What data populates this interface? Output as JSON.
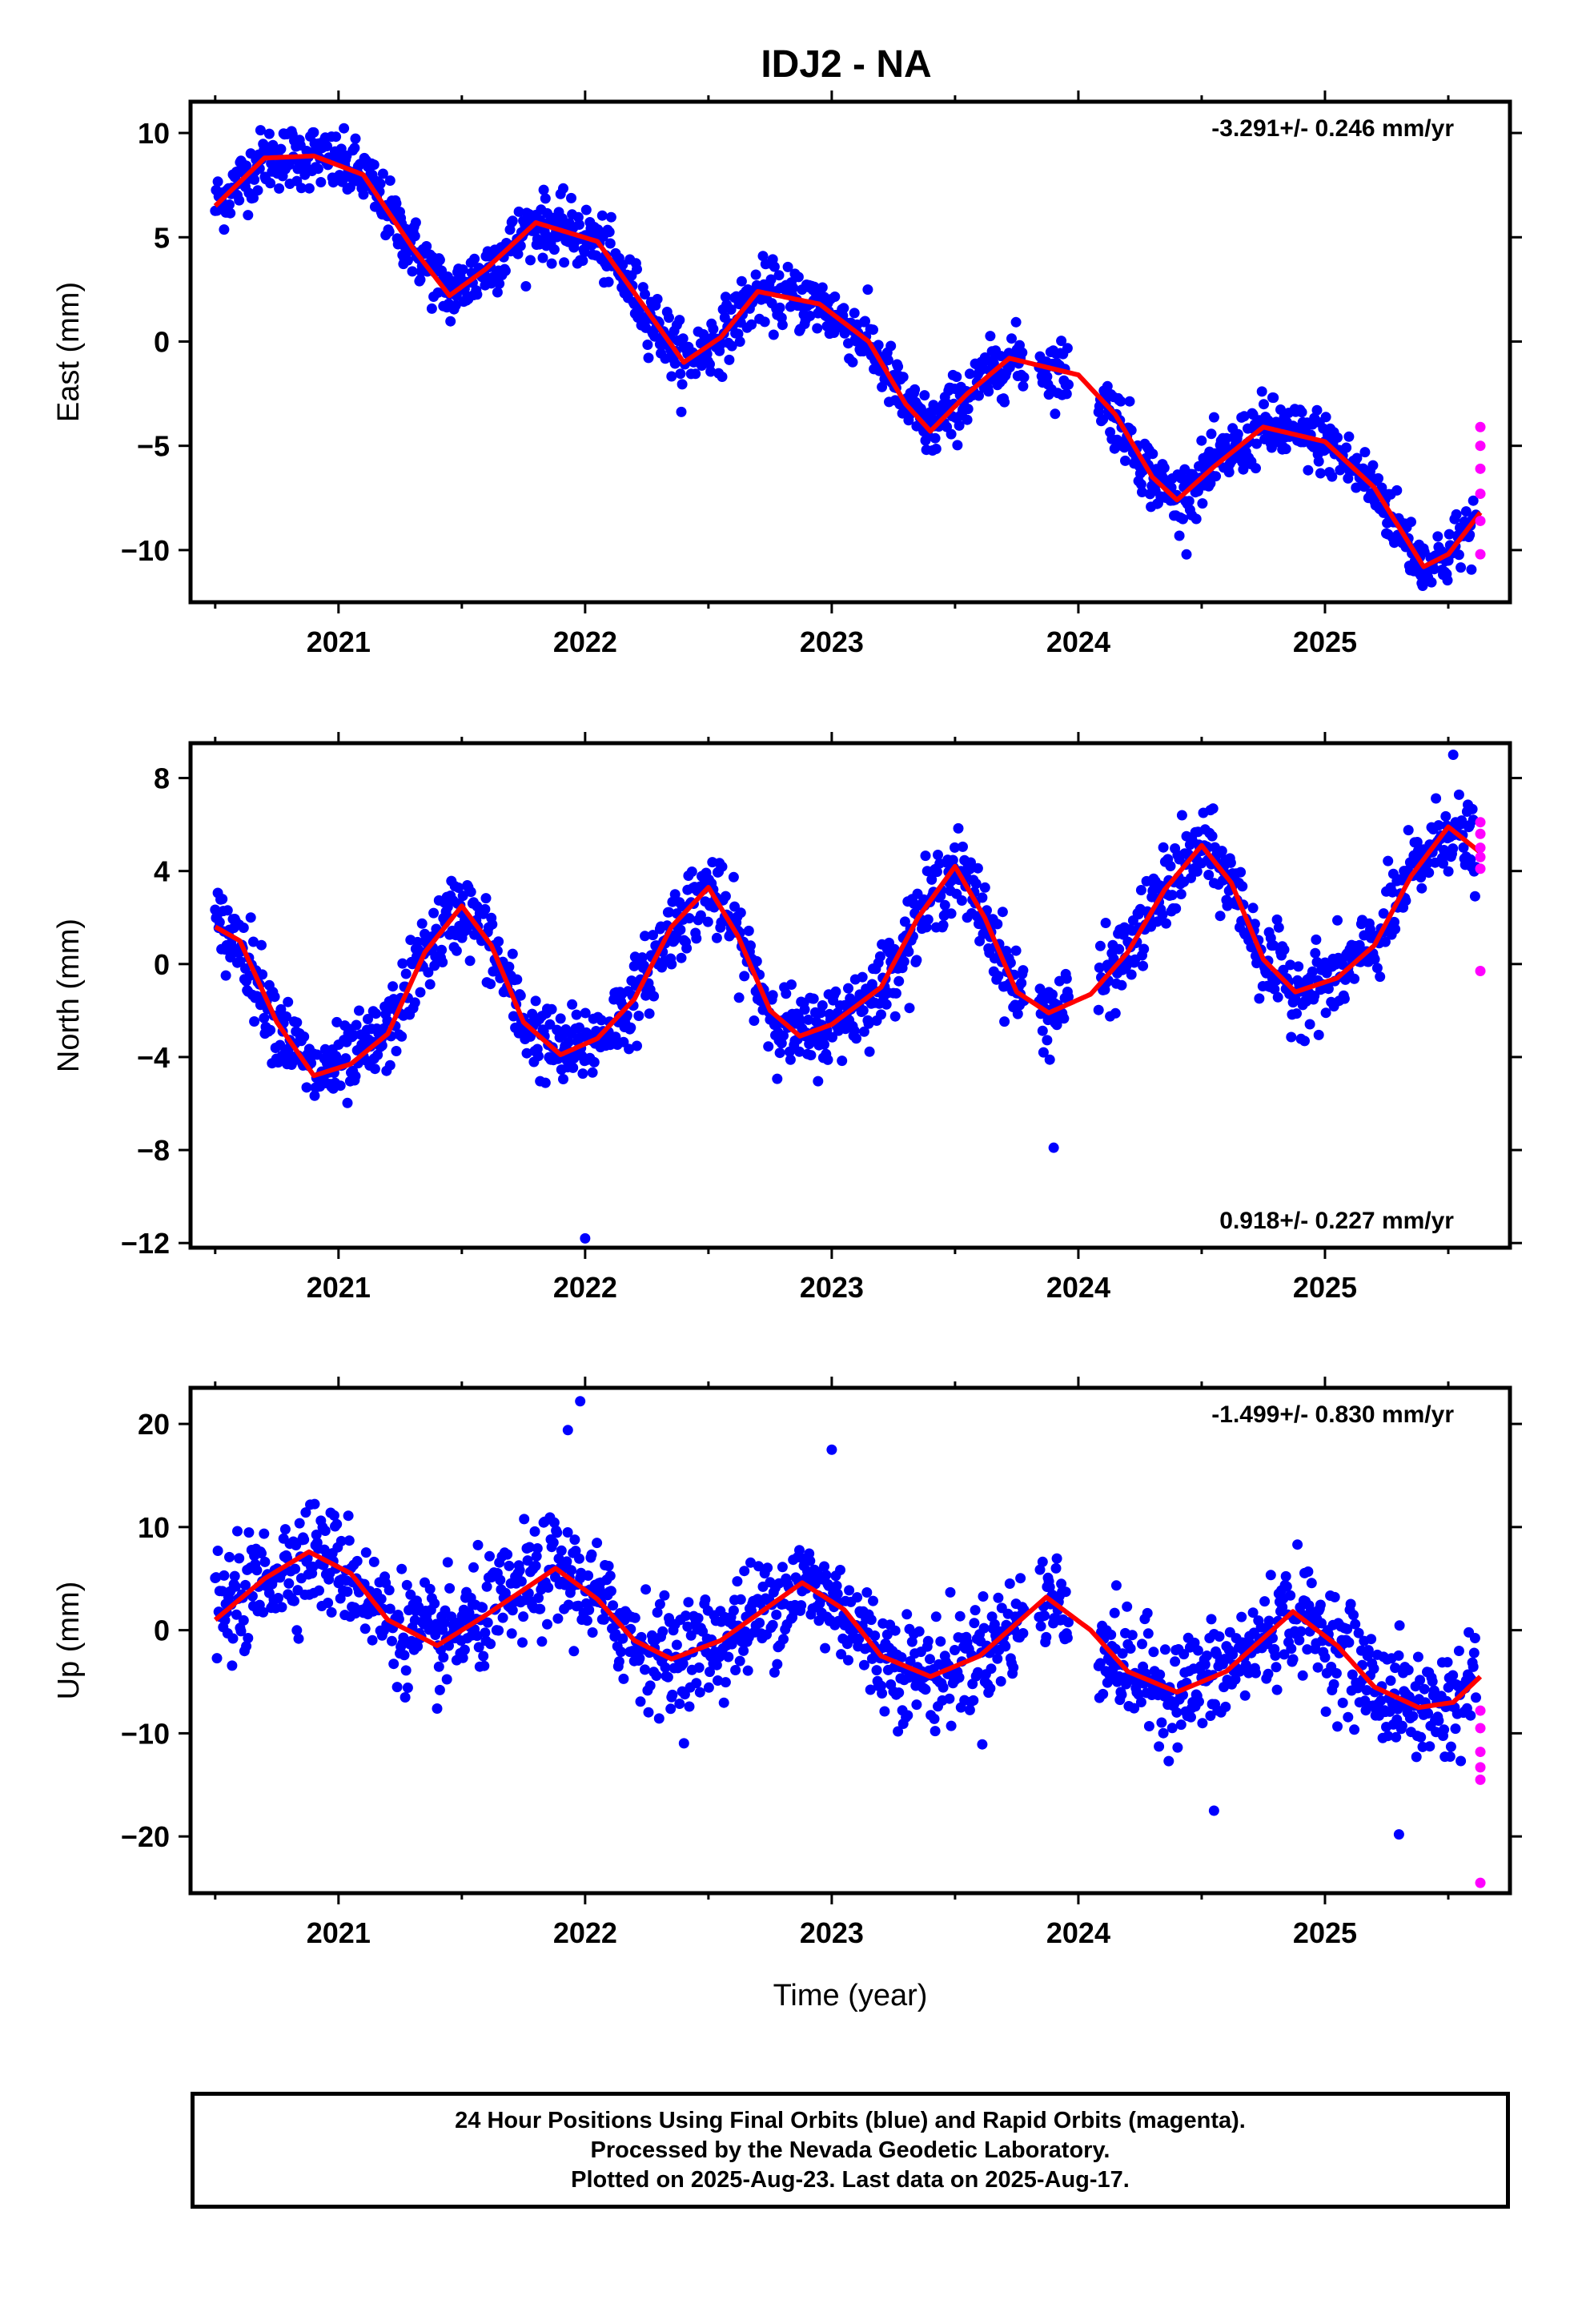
{
  "title": "IDJ2 - NA",
  "colors": {
    "final_orbits": "#0000ff",
    "rapid_orbits": "#ff00ff",
    "model_fit": "#ff0000",
    "axes": "#000000"
  },
  "chart_data": [
    {
      "type": "scatter",
      "component": "East",
      "ylabel": "East (mm)",
      "xlabel": "",
      "xlim": [
        2020.4,
        2025.75
      ],
      "ylim": [
        -12.5,
        11.5
      ],
      "yticks": [
        10,
        5,
        0,
        -5,
        -10
      ],
      "xticks": [
        2021,
        2022,
        2023,
        2024,
        2025
      ],
      "rate_label": "-3.291+/- 0.246 mm/yr",
      "rate_position": "top-right",
      "trend": {
        "t0": 2020.5,
        "y0": 6.8,
        "rate_mm_per_yr": -3.291
      },
      "seasonal_amplitude_mm": 3.2,
      "seasonal_peak_year_fraction": 0.78,
      "fit": [
        {
          "x": 2020.5,
          "y": 6.5
        },
        {
          "x": 2020.7,
          "y": 8.8
        },
        {
          "x": 2020.9,
          "y": 8.9
        },
        {
          "x": 2021.1,
          "y": 8.0
        },
        {
          "x": 2021.3,
          "y": 4.5
        },
        {
          "x": 2021.45,
          "y": 2.2
        },
        {
          "x": 2021.6,
          "y": 3.5
        },
        {
          "x": 2021.8,
          "y": 5.7
        },
        {
          "x": 2022.05,
          "y": 4.8
        },
        {
          "x": 2022.25,
          "y": 1.5
        },
        {
          "x": 2022.4,
          "y": -1.0
        },
        {
          "x": 2022.55,
          "y": 0.2
        },
        {
          "x": 2022.7,
          "y": 2.4
        },
        {
          "x": 2022.95,
          "y": 1.8
        },
        {
          "x": 2023.15,
          "y": 0.0
        },
        {
          "x": 2023.3,
          "y": -3.0
        },
        {
          "x": 2023.4,
          "y": -4.3
        },
        {
          "x": 2023.55,
          "y": -2.5
        },
        {
          "x": 2023.72,
          "y": -0.8
        },
        {
          "x": 2024.0,
          "y": -1.6
        },
        {
          "x": 2024.15,
          "y": -3.5
        },
        {
          "x": 2024.3,
          "y": -6.5
        },
        {
          "x": 2024.4,
          "y": -7.6
        },
        {
          "x": 2024.55,
          "y": -6.0
        },
        {
          "x": 2024.75,
          "y": -4.1
        },
        {
          "x": 2025.0,
          "y": -4.8
        },
        {
          "x": 2025.2,
          "y": -7.0
        },
        {
          "x": 2025.4,
          "y": -10.8
        },
        {
          "x": 2025.5,
          "y": -10.2
        },
        {
          "x": 2025.63,
          "y": -8.2
        }
      ],
      "rapid_points": [
        {
          "x": 2025.63,
          "y": -4.1
        },
        {
          "x": 2025.63,
          "y": -5.0
        },
        {
          "x": 2025.63,
          "y": -6.1
        },
        {
          "x": 2025.63,
          "y": -7.3
        },
        {
          "x": 2025.63,
          "y": -8.6
        },
        {
          "x": 2025.63,
          "y": -10.2
        }
      ]
    },
    {
      "type": "scatter",
      "component": "North",
      "ylabel": "North (mm)",
      "xlabel": "",
      "xlim": [
        2020.4,
        2025.75
      ],
      "ylim": [
        -12.2,
        9.5
      ],
      "yticks": [
        8,
        4,
        0,
        -4,
        -8,
        -12
      ],
      "xticks": [
        2021,
        2022,
        2023,
        2024,
        2025
      ],
      "rate_label": "0.918+/- 0.227 mm/yr",
      "rate_position": "bottom-right",
      "trend": {
        "t0": 2020.5,
        "y0": -2.0,
        "rate_mm_per_yr": 0.918
      },
      "seasonal_amplitude_mm": 3.9,
      "seasonal_peak_year_fraction": 0.45,
      "fit": [
        {
          "x": 2020.5,
          "y": 1.6
        },
        {
          "x": 2020.6,
          "y": 1.0
        },
        {
          "x": 2020.75,
          "y": -2.5
        },
        {
          "x": 2020.9,
          "y": -4.8
        },
        {
          "x": 2021.05,
          "y": -4.3
        },
        {
          "x": 2021.2,
          "y": -3.0
        },
        {
          "x": 2021.35,
          "y": 0.5
        },
        {
          "x": 2021.5,
          "y": 2.5
        },
        {
          "x": 2021.62,
          "y": 0.8
        },
        {
          "x": 2021.75,
          "y": -2.5
        },
        {
          "x": 2021.9,
          "y": -3.9
        },
        {
          "x": 2022.05,
          "y": -3.2
        },
        {
          "x": 2022.2,
          "y": -1.5
        },
        {
          "x": 2022.35,
          "y": 1.6
        },
        {
          "x": 2022.5,
          "y": 3.3
        },
        {
          "x": 2022.62,
          "y": 1.2
        },
        {
          "x": 2022.75,
          "y": -2.0
        },
        {
          "x": 2022.87,
          "y": -3.1
        },
        {
          "x": 2023.0,
          "y": -2.6
        },
        {
          "x": 2023.2,
          "y": -1.0
        },
        {
          "x": 2023.35,
          "y": 2.0
        },
        {
          "x": 2023.5,
          "y": 4.2
        },
        {
          "x": 2023.62,
          "y": 2.0
        },
        {
          "x": 2023.75,
          "y": -1.2
        },
        {
          "x": 2023.88,
          "y": -2.1
        },
        {
          "x": 2024.05,
          "y": -1.3
        },
        {
          "x": 2024.2,
          "y": 0.5
        },
        {
          "x": 2024.35,
          "y": 3.2
        },
        {
          "x": 2024.5,
          "y": 5.1
        },
        {
          "x": 2024.62,
          "y": 3.5
        },
        {
          "x": 2024.75,
          "y": 0.2
        },
        {
          "x": 2024.88,
          "y": -1.2
        },
        {
          "x": 2025.05,
          "y": -0.6
        },
        {
          "x": 2025.2,
          "y": 0.8
        },
        {
          "x": 2025.35,
          "y": 3.8
        },
        {
          "x": 2025.5,
          "y": 5.9
        },
        {
          "x": 2025.63,
          "y": 4.8
        }
      ],
      "rapid_points": [
        {
          "x": 2025.63,
          "y": 6.1
        },
        {
          "x": 2025.63,
          "y": 5.6
        },
        {
          "x": 2025.63,
          "y": 5.0
        },
        {
          "x": 2025.63,
          "y": 4.6
        },
        {
          "x": 2025.63,
          "y": 4.1
        },
        {
          "x": 2025.63,
          "y": -0.3
        }
      ],
      "outliers": [
        {
          "x": 2022.0,
          "y": -11.8
        },
        {
          "x": 2023.9,
          "y": -7.9
        },
        {
          "x": 2025.52,
          "y": 9.0
        }
      ]
    },
    {
      "type": "scatter",
      "component": "Up",
      "ylabel": "Up (mm)",
      "xlabel": "Time (year)",
      "xlim": [
        2020.4,
        2025.75
      ],
      "ylim": [
        -25.5,
        23.5
      ],
      "yticks": [
        20,
        10,
        0,
        -10,
        -20
      ],
      "xticks": [
        2021,
        2022,
        2023,
        2024,
        2025
      ],
      "rate_label": "-1.499+/- 0.830 mm/yr",
      "rate_position": "top-right",
      "trend": {
        "t0": 2020.5,
        "y0": 3.0,
        "rate_mm_per_yr": -1.499
      },
      "seasonal_amplitude_mm": 5.2,
      "seasonal_peak_year_fraction": 0.9,
      "fit": [
        {
          "x": 2020.5,
          "y": 1.0
        },
        {
          "x": 2020.7,
          "y": 5.0
        },
        {
          "x": 2020.88,
          "y": 7.6
        },
        {
          "x": 2021.05,
          "y": 5.5
        },
        {
          "x": 2021.2,
          "y": 1.0
        },
        {
          "x": 2021.4,
          "y": -1.5
        },
        {
          "x": 2021.6,
          "y": 1.5
        },
        {
          "x": 2021.88,
          "y": 6.0
        },
        {
          "x": 2022.05,
          "y": 3.0
        },
        {
          "x": 2022.2,
          "y": -1.0
        },
        {
          "x": 2022.35,
          "y": -2.8
        },
        {
          "x": 2022.55,
          "y": -1.0
        },
        {
          "x": 2022.88,
          "y": 4.6
        },
        {
          "x": 2023.05,
          "y": 2.0
        },
        {
          "x": 2023.2,
          "y": -2.5
        },
        {
          "x": 2023.4,
          "y": -4.5
        },
        {
          "x": 2023.6,
          "y": -2.5
        },
        {
          "x": 2023.87,
          "y": 3.2
        },
        {
          "x": 2024.05,
          "y": 0.0
        },
        {
          "x": 2024.2,
          "y": -4.0
        },
        {
          "x": 2024.4,
          "y": -6.0
        },
        {
          "x": 2024.6,
          "y": -4.0
        },
        {
          "x": 2024.87,
          "y": 1.8
        },
        {
          "x": 2025.05,
          "y": -1.5
        },
        {
          "x": 2025.2,
          "y": -5.5
        },
        {
          "x": 2025.38,
          "y": -7.5
        },
        {
          "x": 2025.52,
          "y": -7.0
        },
        {
          "x": 2025.63,
          "y": -4.5
        }
      ],
      "rapid_points": [
        {
          "x": 2025.63,
          "y": -7.8
        },
        {
          "x": 2025.63,
          "y": -9.5
        },
        {
          "x": 2025.63,
          "y": -11.8
        },
        {
          "x": 2025.63,
          "y": -13.3
        },
        {
          "x": 2025.63,
          "y": -14.5
        },
        {
          "x": 2025.63,
          "y": -24.5
        }
      ],
      "outliers": [
        {
          "x": 2021.98,
          "y": 22.2
        },
        {
          "x": 2021.93,
          "y": 19.4
        },
        {
          "x": 2023.0,
          "y": 17.5
        },
        {
          "x": 2024.55,
          "y": -17.5
        },
        {
          "x": 2025.3,
          "y": -19.8
        }
      ]
    }
  ],
  "caption": {
    "line1": "24 Hour Positions Using Final Orbits (blue) and Rapid Orbits (magenta).",
    "line2": "Processed by the Nevada Geodetic Laboratory.",
    "line3": "Plotted on 2025-Aug-23. Last data on 2025-Aug-17."
  }
}
